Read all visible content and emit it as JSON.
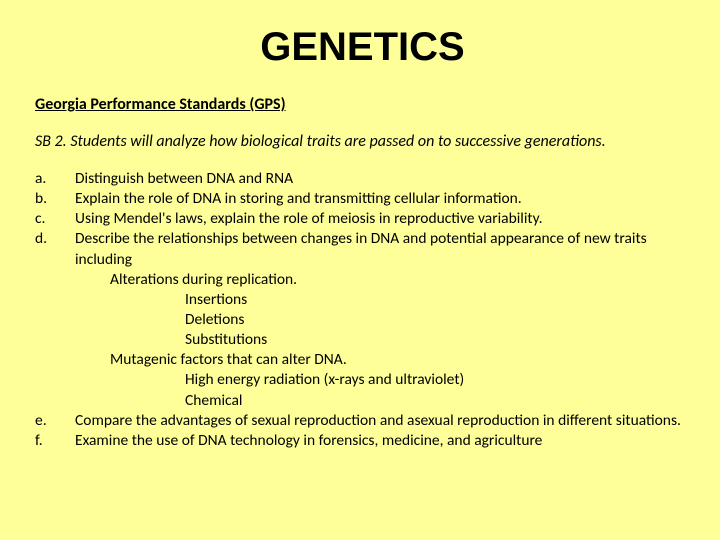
{
  "title": "GENETICS",
  "subtitle": "Georgia Performance Standards (GPS)",
  "standard": "SB 2. Students will analyze how biological traits are passed on to successive generations.",
  "items": {
    "a": {
      "label": "a.",
      "text": "Distinguish between DNA and RNA"
    },
    "b": {
      "label": "b.",
      "text": "Explain the role of DNA in storing and transmitting cellular information."
    },
    "c": {
      "label": "c.",
      "text": "Using Mendel's laws, explain the role of meiosis in reproductive variability."
    },
    "d": {
      "label": "d.",
      "text": "Describe the relationships between changes in DNA and potential appearance of new traits including"
    },
    "d_sub1a": "Alterations during replication.",
    "d_sub2a": "Insertions",
    "d_sub2b": "Deletions",
    "d_sub2c": "Substitutions",
    "d_sub1b": "Mutagenic factors that can alter DNA.",
    "d_sub2d": "High energy radiation (x-rays and ultraviolet)",
    "d_sub2e": "Chemical",
    "e": {
      "label": "e.",
      "text": "Compare the advantages of sexual reproduction and asexual reproduction in different situations."
    },
    "f": {
      "label": "f.",
      "text": "Examine the use of DNA technology in forensics, medicine, and agriculture"
    }
  },
  "colors": {
    "background": "#ffff99",
    "text": "#000000"
  },
  "typography": {
    "title_fontsize": 40,
    "title_weight": 900,
    "body_fontsize": 16,
    "subtitle_fontsize": 16
  }
}
